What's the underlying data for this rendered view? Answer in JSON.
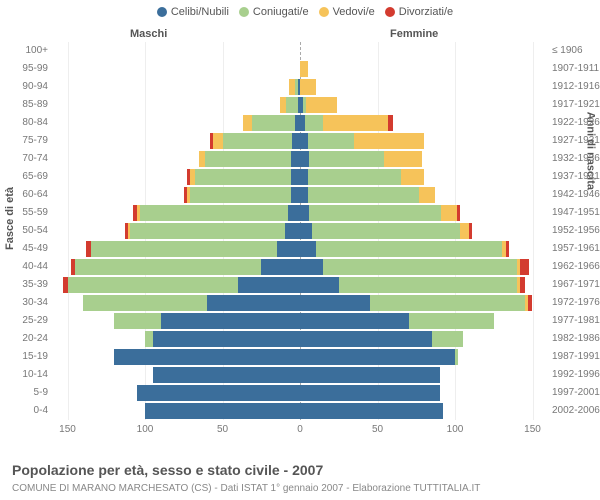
{
  "legend": {
    "items": [
      {
        "label": "Celibi/Nubili",
        "color": "#3b6e9b"
      },
      {
        "label": "Coniugati/e",
        "color": "#a8cf8e"
      },
      {
        "label": "Vedovi/e",
        "color": "#f6c35a"
      },
      {
        "label": "Divorziati/e",
        "color": "#d33b2f"
      }
    ]
  },
  "headers": {
    "male": "Maschi",
    "female": "Femmine"
  },
  "yaxis_left": "Fasce di età",
  "yaxis_right": "Anni di nascita",
  "xaxis": {
    "ticks": [
      150,
      100,
      50,
      0,
      50,
      100,
      150
    ],
    "max": 160
  },
  "footer_title": "Popolazione per età, sesso e stato civile - 2007",
  "footer_sub": "COMUNE DI MARANO MARCHESATO (CS) - Dati ISTAT 1° gennaio 2007 - Elaborazione TUTTITALIA.IT",
  "colors": {
    "celibi": "#3b6e9b",
    "coniugati": "#a8cf8e",
    "vedovi": "#f6c35a",
    "divorziati": "#d33b2f",
    "grid": "#eeeeee",
    "axis": "#aaaaaa"
  },
  "rows": [
    {
      "age": "100+",
      "birth": "≤ 1906",
      "m": {
        "c": 0,
        "g": 0,
        "v": 0,
        "d": 0
      },
      "f": {
        "c": 0,
        "g": 0,
        "v": 0,
        "d": 0
      }
    },
    {
      "age": "95-99",
      "birth": "1907-1911",
      "m": {
        "c": 0,
        "g": 0,
        "v": 0,
        "d": 0
      },
      "f": {
        "c": 0,
        "g": 0,
        "v": 5,
        "d": 0
      }
    },
    {
      "age": "90-94",
      "birth": "1912-1916",
      "m": {
        "c": 1,
        "g": 2,
        "v": 4,
        "d": 0
      },
      "f": {
        "c": 0,
        "g": 0,
        "v": 10,
        "d": 0
      }
    },
    {
      "age": "85-89",
      "birth": "1917-1921",
      "m": {
        "c": 1,
        "g": 8,
        "v": 4,
        "d": 0
      },
      "f": {
        "c": 2,
        "g": 2,
        "v": 20,
        "d": 0
      }
    },
    {
      "age": "80-84",
      "birth": "1922-1926",
      "m": {
        "c": 3,
        "g": 28,
        "v": 6,
        "d": 0
      },
      "f": {
        "c": 3,
        "g": 12,
        "v": 42,
        "d": 3
      }
    },
    {
      "age": "75-79",
      "birth": "1927-1931",
      "m": {
        "c": 5,
        "g": 45,
        "v": 6,
        "d": 2
      },
      "f": {
        "c": 5,
        "g": 30,
        "v": 45,
        "d": 0
      }
    },
    {
      "age": "70-74",
      "birth": "1932-1936",
      "m": {
        "c": 6,
        "g": 55,
        "v": 4,
        "d": 0
      },
      "f": {
        "c": 6,
        "g": 48,
        "v": 25,
        "d": 0
      }
    },
    {
      "age": "65-69",
      "birth": "1937-1941",
      "m": {
        "c": 6,
        "g": 62,
        "v": 3,
        "d": 2
      },
      "f": {
        "c": 5,
        "g": 60,
        "v": 15,
        "d": 0
      }
    },
    {
      "age": "60-64",
      "birth": "1942-1946",
      "m": {
        "c": 6,
        "g": 65,
        "v": 2,
        "d": 2
      },
      "f": {
        "c": 5,
        "g": 72,
        "v": 10,
        "d": 0
      }
    },
    {
      "age": "55-59",
      "birth": "1947-1951",
      "m": {
        "c": 8,
        "g": 95,
        "v": 2,
        "d": 3
      },
      "f": {
        "c": 6,
        "g": 85,
        "v": 10,
        "d": 2
      }
    },
    {
      "age": "50-54",
      "birth": "1952-1956",
      "m": {
        "c": 10,
        "g": 100,
        "v": 1,
        "d": 2
      },
      "f": {
        "c": 8,
        "g": 95,
        "v": 6,
        "d": 2
      }
    },
    {
      "age": "45-49",
      "birth": "1957-1961",
      "m": {
        "c": 15,
        "g": 120,
        "v": 0,
        "d": 3
      },
      "f": {
        "c": 10,
        "g": 120,
        "v": 3,
        "d": 2
      }
    },
    {
      "age": "40-44",
      "birth": "1962-1966",
      "m": {
        "c": 25,
        "g": 120,
        "v": 0,
        "d": 3
      },
      "f": {
        "c": 15,
        "g": 125,
        "v": 2,
        "d": 6
      }
    },
    {
      "age": "35-39",
      "birth": "1967-1971",
      "m": {
        "c": 40,
        "g": 110,
        "v": 0,
        "d": 3
      },
      "f": {
        "c": 25,
        "g": 115,
        "v": 2,
        "d": 3
      }
    },
    {
      "age": "30-34",
      "birth": "1972-1976",
      "m": {
        "c": 60,
        "g": 80,
        "v": 0,
        "d": 0
      },
      "f": {
        "c": 45,
        "g": 100,
        "v": 2,
        "d": 3
      }
    },
    {
      "age": "25-29",
      "birth": "1977-1981",
      "m": {
        "c": 90,
        "g": 30,
        "v": 0,
        "d": 0
      },
      "f": {
        "c": 70,
        "g": 55,
        "v": 0,
        "d": 0
      }
    },
    {
      "age": "20-24",
      "birth": "1982-1986",
      "m": {
        "c": 95,
        "g": 5,
        "v": 0,
        "d": 0
      },
      "f": {
        "c": 85,
        "g": 20,
        "v": 0,
        "d": 0
      }
    },
    {
      "age": "15-19",
      "birth": "1987-1991",
      "m": {
        "c": 120,
        "g": 0,
        "v": 0,
        "d": 0
      },
      "f": {
        "c": 100,
        "g": 2,
        "v": 0,
        "d": 0
      }
    },
    {
      "age": "10-14",
      "birth": "1992-1996",
      "m": {
        "c": 95,
        "g": 0,
        "v": 0,
        "d": 0
      },
      "f": {
        "c": 90,
        "g": 0,
        "v": 0,
        "d": 0
      }
    },
    {
      "age": "5-9",
      "birth": "1997-2001",
      "m": {
        "c": 105,
        "g": 0,
        "v": 0,
        "d": 0
      },
      "f": {
        "c": 90,
        "g": 0,
        "v": 0,
        "d": 0
      }
    },
    {
      "age": "0-4",
      "birth": "2002-2006",
      "m": {
        "c": 100,
        "g": 0,
        "v": 0,
        "d": 0
      },
      "f": {
        "c": 92,
        "g": 0,
        "v": 0,
        "d": 0
      }
    }
  ]
}
